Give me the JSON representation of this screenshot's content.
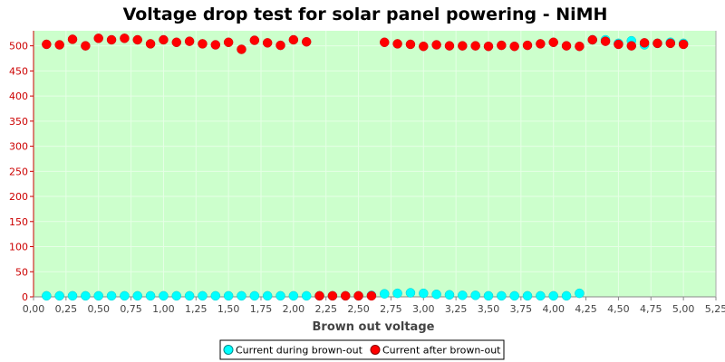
{
  "chart_data": {
    "type": "scatter",
    "title": "Voltage drop test for solar panel powering -  NiMH",
    "xlabel": "Brown out voltage",
    "ylabel": "",
    "xlim": [
      0,
      5.25
    ],
    "ylim": [
      0,
      530
    ],
    "x_ticks": [
      "0,00",
      "0,25",
      "0,50",
      "0,75",
      "1,00",
      "1,25",
      "1,50",
      "1,75",
      "2,00",
      "2,25",
      "2,50",
      "2,75",
      "3,00",
      "3,25",
      "3,50",
      "3,75",
      "4,00",
      "4,25",
      "4,50",
      "4,75",
      "5,00",
      "5,25"
    ],
    "y_ticks": [
      "0",
      "50",
      "100",
      "150",
      "200",
      "250",
      "300",
      "350",
      "400",
      "450",
      "500"
    ],
    "plot_background": "#ccffcc",
    "y_tick_color": "#cc0000",
    "legend_position": "bottom",
    "series": [
      {
        "name": "Current during brown-out",
        "color": "#00ffff",
        "points": [
          [
            0.1,
            2
          ],
          [
            0.2,
            2
          ],
          [
            0.3,
            2
          ],
          [
            0.4,
            2
          ],
          [
            0.5,
            2
          ],
          [
            0.6,
            2
          ],
          [
            0.7,
            2
          ],
          [
            0.8,
            2
          ],
          [
            0.9,
            2
          ],
          [
            1.0,
            2
          ],
          [
            1.1,
            2
          ],
          [
            1.2,
            2
          ],
          [
            1.3,
            2
          ],
          [
            1.4,
            2
          ],
          [
            1.5,
            2
          ],
          [
            1.6,
            2
          ],
          [
            1.7,
            2
          ],
          [
            1.8,
            2
          ],
          [
            1.9,
            2
          ],
          [
            2.0,
            2
          ],
          [
            2.1,
            2
          ],
          [
            2.2,
            2
          ],
          [
            2.3,
            2
          ],
          [
            2.4,
            2
          ],
          [
            2.5,
            2
          ],
          [
            2.6,
            3
          ],
          [
            2.7,
            6
          ],
          [
            2.8,
            7
          ],
          [
            2.9,
            8
          ],
          [
            3.0,
            7
          ],
          [
            3.1,
            5
          ],
          [
            3.2,
            4
          ],
          [
            3.3,
            3
          ],
          [
            3.4,
            3
          ],
          [
            3.5,
            2
          ],
          [
            3.6,
            2
          ],
          [
            3.7,
            2
          ],
          [
            3.8,
            2
          ],
          [
            3.9,
            2
          ],
          [
            4.0,
            2
          ],
          [
            4.1,
            2
          ],
          [
            4.2,
            7
          ],
          [
            4.3,
            512
          ],
          [
            4.4,
            512
          ],
          [
            4.5,
            505
          ],
          [
            4.6,
            510
          ],
          [
            4.7,
            502
          ],
          [
            4.8,
            505
          ],
          [
            4.9,
            507
          ],
          [
            5.0,
            505
          ]
        ]
      },
      {
        "name": "Current after brown-out",
        "color": "#ff0000",
        "points": [
          [
            0.1,
            503
          ],
          [
            0.2,
            502
          ],
          [
            0.3,
            513
          ],
          [
            0.4,
            500
          ],
          [
            0.5,
            515
          ],
          [
            0.6,
            512
          ],
          [
            0.7,
            515
          ],
          [
            0.8,
            512
          ],
          [
            0.9,
            504
          ],
          [
            1.0,
            512
          ],
          [
            1.1,
            507
          ],
          [
            1.2,
            509
          ],
          [
            1.3,
            504
          ],
          [
            1.4,
            502
          ],
          [
            1.5,
            507
          ],
          [
            1.6,
            493
          ],
          [
            1.7,
            511
          ],
          [
            1.8,
            506
          ],
          [
            1.9,
            501
          ],
          [
            2.0,
            512
          ],
          [
            2.1,
            508
          ],
          [
            2.2,
            2
          ],
          [
            2.3,
            2
          ],
          [
            2.4,
            2
          ],
          [
            2.5,
            2
          ],
          [
            2.6,
            2
          ],
          [
            2.7,
            507
          ],
          [
            2.8,
            504
          ],
          [
            2.9,
            503
          ],
          [
            3.0,
            499
          ],
          [
            3.1,
            502
          ],
          [
            3.2,
            500
          ],
          [
            3.3,
            500
          ],
          [
            3.4,
            500
          ],
          [
            3.5,
            499
          ],
          [
            3.6,
            501
          ],
          [
            3.7,
            499
          ],
          [
            3.8,
            501
          ],
          [
            3.9,
            504
          ],
          [
            4.0,
            507
          ],
          [
            4.1,
            500
          ],
          [
            4.2,
            499
          ],
          [
            4.3,
            512
          ],
          [
            4.4,
            509
          ],
          [
            4.5,
            503
          ],
          [
            4.6,
            500
          ],
          [
            4.7,
            506
          ],
          [
            4.8,
            505
          ],
          [
            4.9,
            505
          ],
          [
            5.0,
            503
          ]
        ]
      }
    ]
  }
}
